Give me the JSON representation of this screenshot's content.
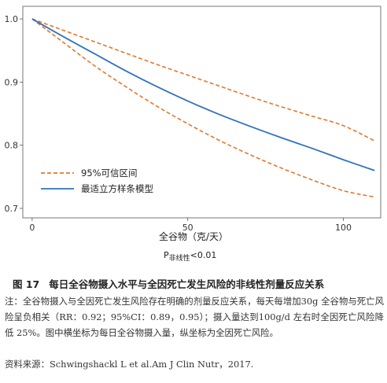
{
  "chart_data": {
    "type": "line",
    "xlabel": "全谷物（克/天）",
    "ylabel": "",
    "xlim": [
      -3,
      112
    ],
    "ylim": [
      0.685,
      1.02
    ],
    "x_ticks": [
      0,
      50,
      100
    ],
    "y_ticks": [
      0.7,
      0.8,
      0.9,
      1.0
    ],
    "x_tick_labels": [
      "0",
      "50",
      "100"
    ],
    "y_tick_labels": [
      "0.7",
      "0.8",
      "0.9",
      "1.0"
    ],
    "legend_position": "bottom-left",
    "series": [
      {
        "name": "95%可信区间",
        "style": "dashed",
        "color": "#E2772E",
        "role": "upper",
        "x": [
          0,
          10,
          20,
          30,
          40,
          50,
          60,
          70,
          80,
          90,
          100,
          110
        ],
        "y": [
          1.0,
          0.982,
          0.964,
          0.946,
          0.928,
          0.911,
          0.894,
          0.877,
          0.861,
          0.846,
          0.831,
          0.807
        ]
      },
      {
        "name": "95%可信区间",
        "style": "dashed",
        "color": "#E2772E",
        "role": "lower",
        "x": [
          0,
          10,
          20,
          30,
          40,
          50,
          60,
          70,
          80,
          90,
          100,
          110
        ],
        "y": [
          1.0,
          0.963,
          0.926,
          0.893,
          0.862,
          0.834,
          0.808,
          0.785,
          0.764,
          0.745,
          0.728,
          0.718
        ]
      },
      {
        "name": "最适立方样条模型",
        "style": "solid",
        "color": "#3173BA",
        "x": [
          0,
          10,
          20,
          30,
          40,
          50,
          60,
          70,
          80,
          90,
          100,
          110
        ],
        "y": [
          1.0,
          0.972,
          0.945,
          0.918,
          0.893,
          0.87,
          0.849,
          0.83,
          0.812,
          0.795,
          0.777,
          0.76
        ]
      }
    ],
    "legend": [
      {
        "label": "95%可信区间",
        "style": "dashed",
        "color": "#E2772E"
      },
      {
        "label": "最适立方样条模型",
        "style": "solid",
        "color": "#3173BA"
      }
    ]
  },
  "p_value": {
    "prefix": "P",
    "sub": "非线性",
    "suffix": "<0.01"
  },
  "figure": {
    "number": "图 17",
    "title": "每日全谷物摄入水平与全因死亡发生风险的非线性剂量反应关系",
    "note": "注：全谷物摄入与全因死亡发生风险存在明确的剂量反应关系，每天每增加30g 全谷物与死亡风险呈负相关（RR：0.92；95%CI：0.89，0.95）；摄入量达到100g/d 左右时全因死亡风险降低 25%。图中横坐标为每日全谷物摄入量，纵坐标为全因死亡风险。",
    "source": "资料来源：Schwingshackl L et al.Am J Clin Nutr，2017."
  }
}
